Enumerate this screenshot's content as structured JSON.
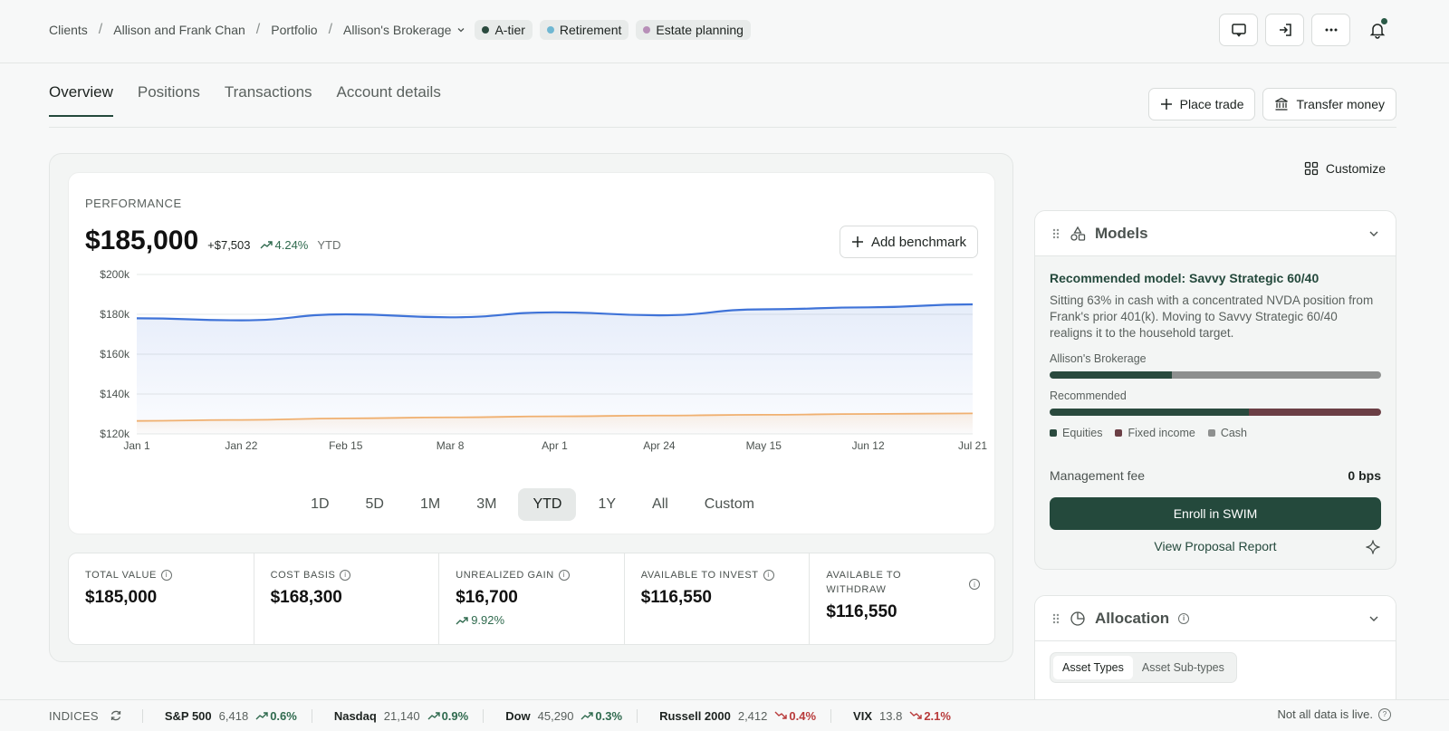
{
  "breadcrumb": [
    "Clients",
    "Allison and Frank Chan",
    "Portfolio"
  ],
  "account_selector": "Allison's Brokerage",
  "tags": [
    {
      "label": "A-tier",
      "color": "#2a4a3e"
    },
    {
      "label": "Retirement",
      "color": "#6fb7d2"
    },
    {
      "label": "Estate planning",
      "color": "#b78fb8"
    }
  ],
  "tabs": [
    "Overview",
    "Positions",
    "Transactions",
    "Account details"
  ],
  "actions": {
    "place_trade": "Place trade",
    "transfer_money": "Transfer money",
    "customize": "Customize"
  },
  "performance": {
    "label": "PERFORMANCE",
    "value": "$185,000",
    "change": "+$7,503",
    "pct": "4.24%",
    "period": "YTD",
    "add_benchmark": "Add benchmark",
    "ranges": [
      "1D",
      "5D",
      "1M",
      "3M",
      "YTD",
      "1Y",
      "All",
      "Custom"
    ],
    "active_range": "YTD"
  },
  "chart_data": {
    "type": "area",
    "x": [
      "Jan 1",
      "Jan 22",
      "Feb 15",
      "Mar 8",
      "Apr 1",
      "Apr 24",
      "May 15",
      "Jun 12",
      "Jul 21"
    ],
    "y_ticks": [
      "$120k",
      "$140k",
      "$160k",
      "$180k",
      "$200k"
    ],
    "ylim": [
      120000,
      200000
    ],
    "series": [
      {
        "values": [
          178000,
          177000,
          180000,
          178500,
          181000,
          179500,
          182500,
          183500,
          185000
        ],
        "color": "#3f73d8"
      },
      {
        "values": [
          126500,
          127000,
          127800,
          128300,
          128800,
          129200,
          129600,
          130000,
          130300
        ],
        "color": "#f0b070"
      }
    ]
  },
  "stats": [
    {
      "label": "TOTAL VALUE",
      "value": "$185,000"
    },
    {
      "label": "COST BASIS",
      "value": "$168,300"
    },
    {
      "label": "UNREALIZED GAIN",
      "value": "$16,700",
      "sub": "9.92%"
    },
    {
      "label": "AVAILABLE TO INVEST",
      "value": "$116,550"
    },
    {
      "label": "AVAILABLE TO WITHDRAW",
      "value": "$116,550"
    }
  ],
  "models": {
    "title": "Models",
    "rec_title": "Recommended model: Savvy Strategic 60/40",
    "rec_desc": "Sitting 63% in cash with a concentrated NVDA position from Frank's prior 401(k). Moving to Savvy Strategic 60/40 realigns it to the household target.",
    "current_label": "Allison's Brokerage",
    "current_alloc": {
      "equities": 37,
      "fixed_income": 0,
      "cash": 63
    },
    "recommended_label": "Recommended",
    "recommended_alloc": {
      "equities": 60,
      "fixed_income": 40,
      "cash": 0
    },
    "legend": [
      "Equities",
      "Fixed income",
      "Cash"
    ],
    "colors": {
      "equities": "#2a4a3e",
      "fixed_income": "#6b3f45",
      "cash": "#8e908f"
    },
    "fee_label": "Management fee",
    "fee_value": "0 bps",
    "enroll": "Enroll in SWIM",
    "proposal": "View Proposal Report"
  },
  "allocation": {
    "title": "Allocation",
    "seg": [
      "Asset Types",
      "Asset Sub-types"
    ]
  },
  "ticker": {
    "label": "INDICES",
    "items": [
      {
        "name": "S&P 500",
        "value": "6,418",
        "change": "0.6%",
        "dir": "up"
      },
      {
        "name": "Nasdaq",
        "value": "21,140",
        "change": "0.9%",
        "dir": "up"
      },
      {
        "name": "Dow",
        "value": "45,290",
        "change": "0.3%",
        "dir": "up"
      },
      {
        "name": "Russell 2000",
        "value": "2,412",
        "change": "0.4%",
        "dir": "down"
      },
      {
        "name": "VIX",
        "value": "13.8",
        "change": "2.1%",
        "dir": "down"
      }
    ],
    "note": "Not all data is live."
  }
}
